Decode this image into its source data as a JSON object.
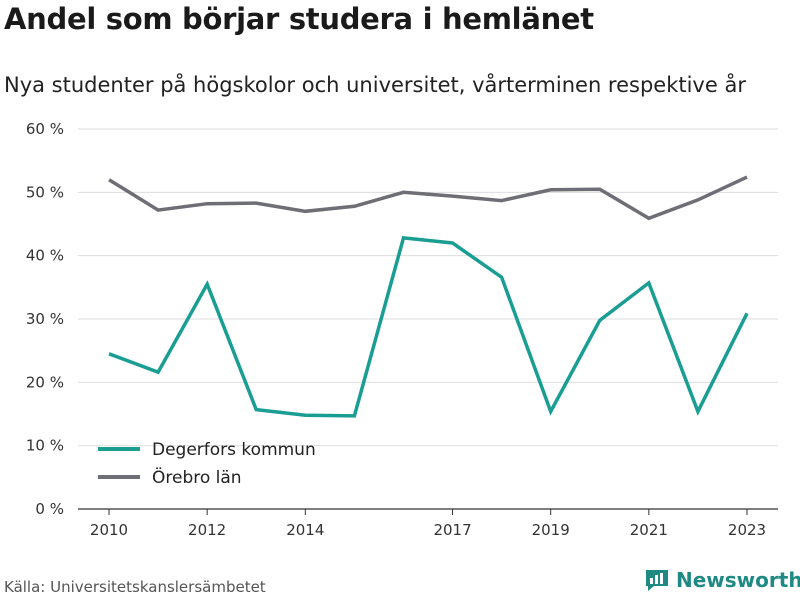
{
  "title": "Andel som börjar studera i hemlänet",
  "subtitle": "Nya studenter på högskolor och universitet, vårterminen respektive år",
  "source": "Källa: Universitetskanslersämbetet",
  "brand": {
    "name": "Newsworthy",
    "icon": "newsworthy-logo-icon",
    "color": "#1f8a83"
  },
  "chart_data": {
    "type": "line",
    "x": [
      2010,
      2011,
      2012,
      2013,
      2014,
      2015,
      2016,
      2017,
      2018,
      2019,
      2020,
      2021,
      2022,
      2023
    ],
    "x_ticks": [
      2010,
      2012,
      2014,
      2017,
      2019,
      2021,
      2023
    ],
    "y_ticks": [
      "0 %",
      "10 %",
      "20 %",
      "30 %",
      "40 %",
      "50 %",
      "60 %"
    ],
    "ylim": [
      0,
      60
    ],
    "grid": true,
    "legend_position": "bottom-left",
    "series": [
      {
        "name": "Degerfors kommun",
        "color": "#1a9e94",
        "values": [
          24.5,
          21.6,
          35.5,
          15.7,
          14.8,
          14.7,
          42.8,
          42.0,
          36.6,
          15.4,
          29.8,
          35.7,
          15.4,
          30.9
        ]
      },
      {
        "name": "Örebro län",
        "color": "#6e6e76",
        "values": [
          52.0,
          47.2,
          48.2,
          48.3,
          47.0,
          47.8,
          50.0,
          49.4,
          48.7,
          50.4,
          50.5,
          45.9,
          48.8,
          52.4
        ]
      }
    ]
  }
}
